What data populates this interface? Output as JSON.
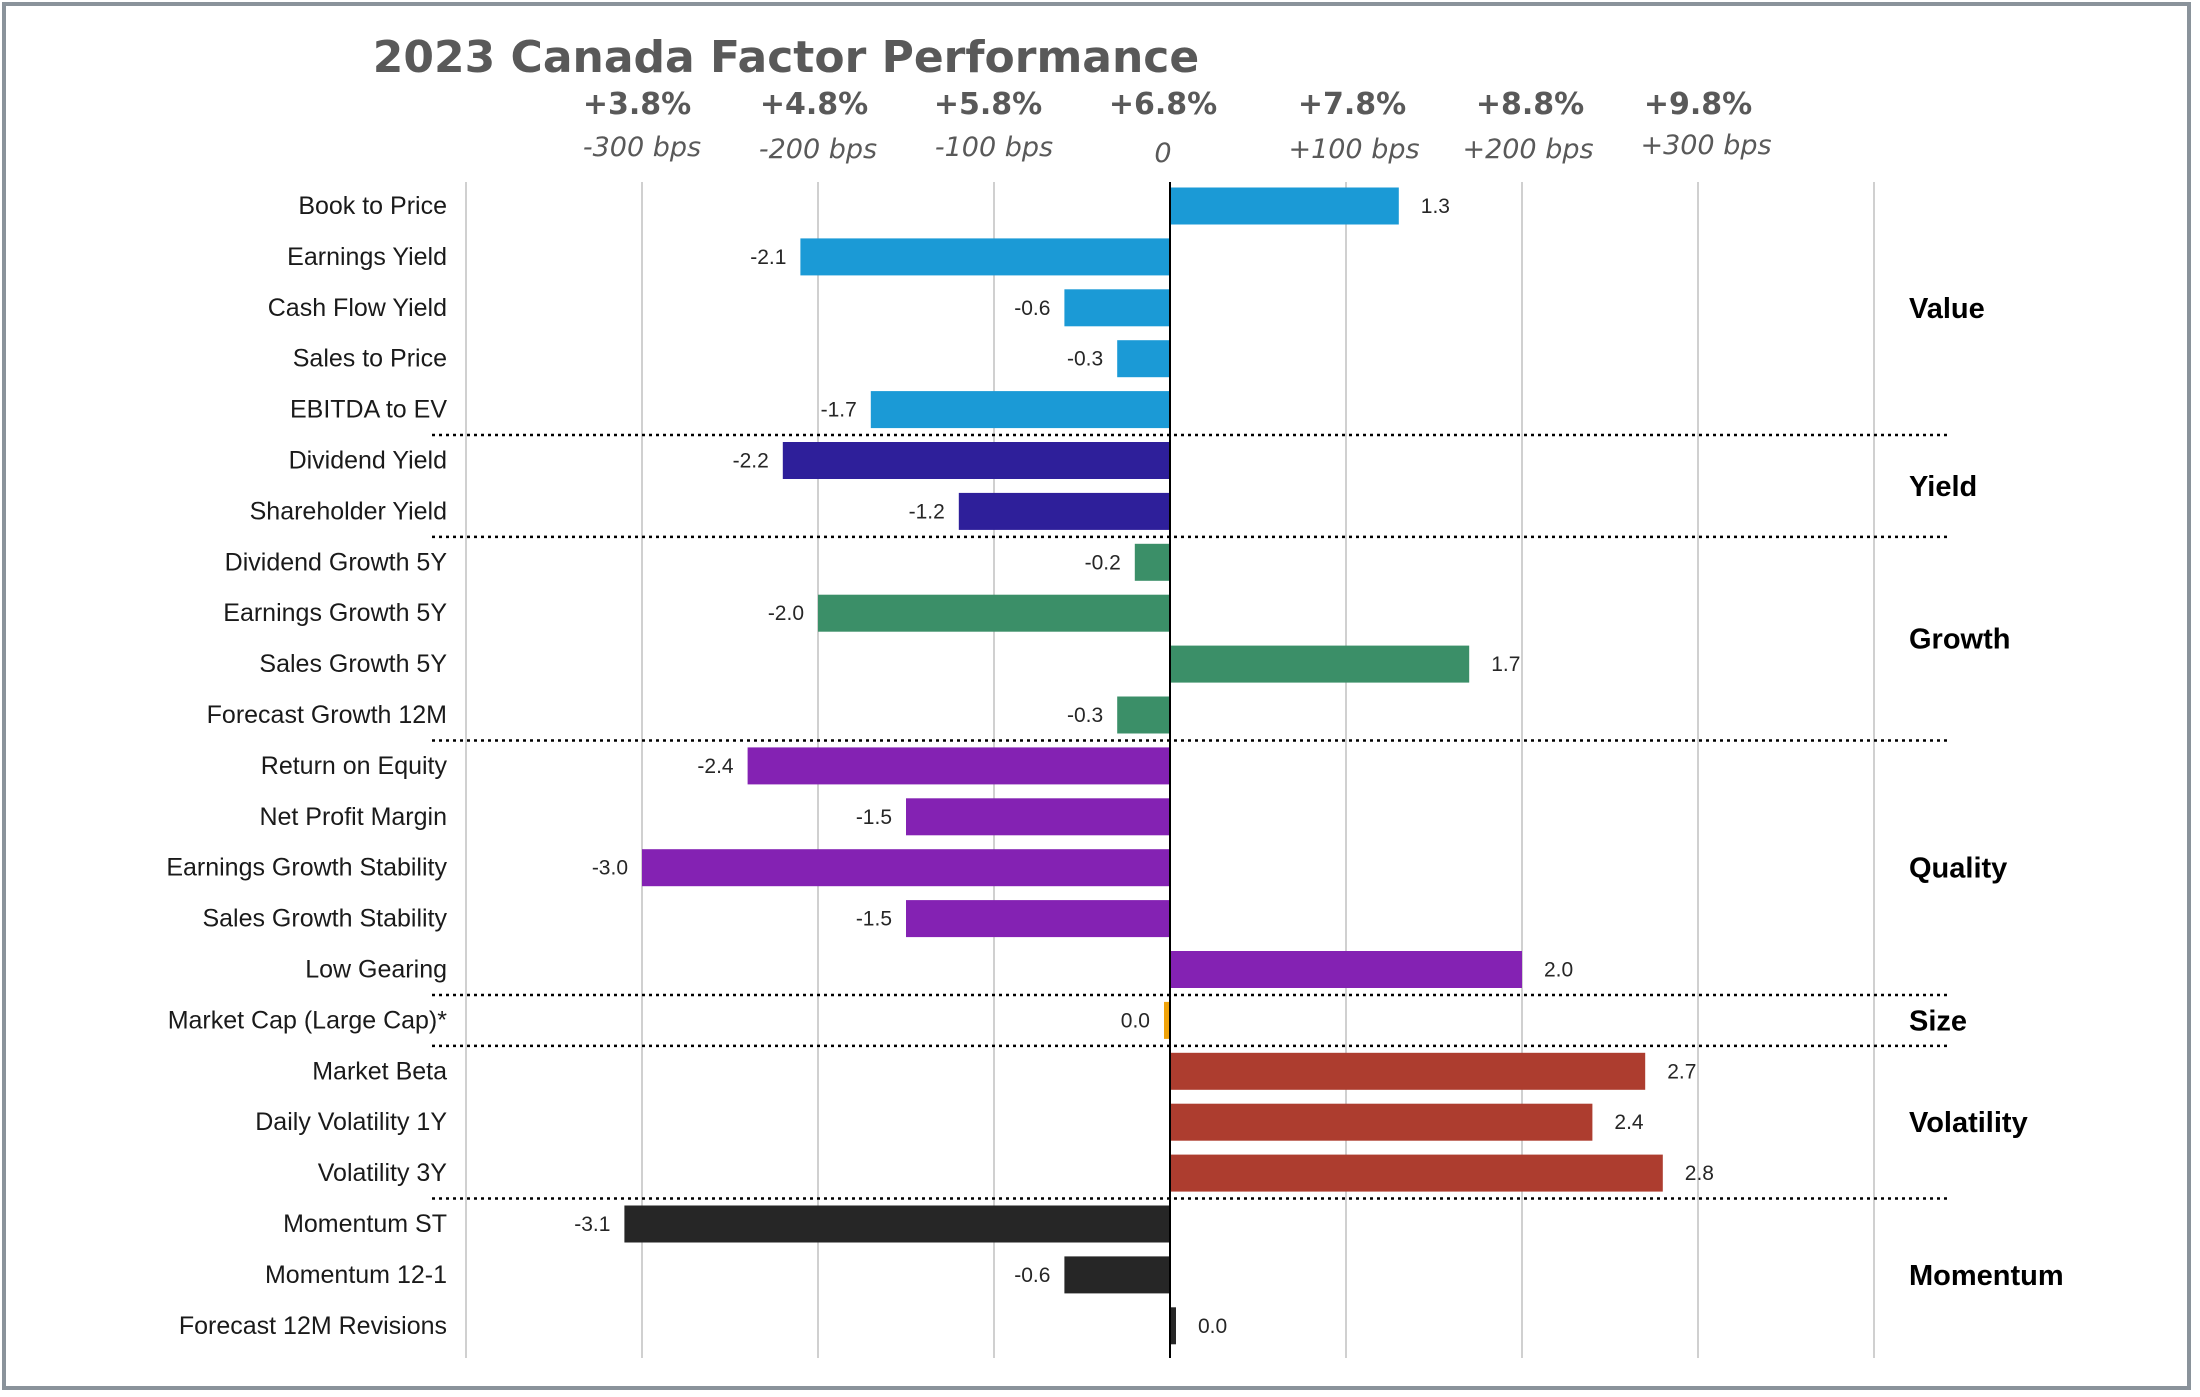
{
  "chart_data": {
    "type": "bar",
    "orientation": "horizontal",
    "title": "2023 Canada Factor Performance",
    "x_tick_labels_top": [
      "+3.8%",
      "+4.8%",
      "+5.8%",
      "+6.8%",
      "+7.8%",
      "+8.8%",
      "+9.8%"
    ],
    "x_tick_labels_bps": [
      "-300 bps",
      "-200 bps",
      "-100 bps",
      "0",
      "+100 bps",
      "+200 bps",
      "+300 bps"
    ],
    "xlim": [
      -4,
      4
    ],
    "grid": true,
    "categories": [
      "Book to Price",
      "Earnings Yield",
      "Cash Flow Yield",
      "Sales to Price",
      "EBITDA to EV",
      "Dividend Yield",
      "Shareholder Yield",
      "Dividend Growth 5Y",
      "Earnings Growth 5Y",
      "Sales Growth 5Y",
      "Forecast Growth 12M",
      "Return on Equity",
      "Net Profit Margin",
      "Earnings Growth Stability",
      "Sales Growth Stability",
      "Low Gearing",
      "Market Cap (Large Cap)*",
      "Market Beta",
      "Daily Volatility 1Y",
      "Volatility 3Y",
      "Momentum ST",
      "Momentum 12-1",
      "Forecast 12M Revisions"
    ],
    "values": [
      1.3,
      -2.1,
      -0.6,
      -0.3,
      -1.7,
      -2.2,
      -1.2,
      -0.2,
      -2.0,
      1.7,
      -0.3,
      -2.4,
      -1.5,
      -3.0,
      -1.5,
      2.0,
      0.0,
      2.7,
      2.4,
      2.8,
      -3.1,
      -0.6,
      0.0
    ],
    "value_labels": [
      "1.3",
      "-2.1",
      "-0.6",
      "-0.3",
      "-1.7",
      "-2.2",
      "-1.2",
      "-0.2",
      "-2.0",
      "1.7",
      "-0.3",
      "-2.4",
      "-1.5",
      "-3.0",
      "-1.5",
      "2.0",
      "0.0",
      "2.7",
      "2.4",
      "2.8",
      "-3.1",
      "-0.6",
      "0.0"
    ],
    "groups": [
      {
        "name": "Value",
        "color": "#1b9ad6",
        "items": 5
      },
      {
        "name": "Yield",
        "color": "#2e1f9a",
        "items": 2
      },
      {
        "name": "Growth",
        "color": "#3b8f68",
        "items": 4
      },
      {
        "name": "Quality",
        "color": "#8422b3",
        "items": 5
      },
      {
        "name": "Size",
        "color": "#f0a30a",
        "items": 1
      },
      {
        "name": "Volatility",
        "color": "#ad3d2f",
        "items": 3
      },
      {
        "name": "Momentum",
        "color": "#262626",
        "items": 3
      }
    ]
  }
}
